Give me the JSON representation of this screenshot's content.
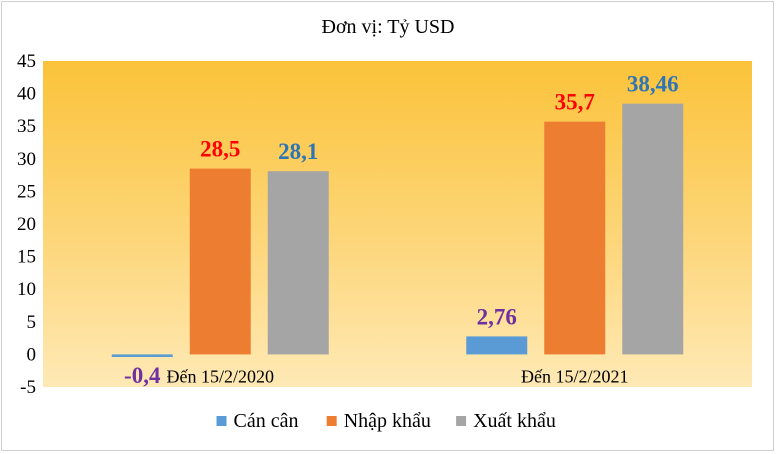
{
  "chart_data": {
    "type": "bar",
    "title": "Đơn vị: Tỷ USD",
    "categories": [
      "Đến 15/2/2020",
      "Đến 15/2/2021"
    ],
    "series": [
      {
        "name": "Cán cân",
        "values": [
          -0.4,
          2.76
        ],
        "labels": [
          "-0,4",
          "2,76"
        ],
        "color": "#5b9bd5",
        "label_color": "#7030a0"
      },
      {
        "name": "Nhập khẩu",
        "values": [
          28.5,
          35.7
        ],
        "labels": [
          "28,5",
          "35,7"
        ],
        "color": "#ed7d31",
        "label_color": "#ff0000"
      },
      {
        "name": "Xuất khẩu",
        "values": [
          28.1,
          38.46
        ],
        "labels": [
          "28,1",
          "38,46"
        ],
        "color": "#a5a5a5",
        "label_color": "#2e75b6"
      }
    ],
    "ylim": [
      -5,
      45
    ],
    "yticks": [
      -5,
      0,
      5,
      10,
      15,
      20,
      25,
      30,
      35,
      40,
      45
    ],
    "grid": false,
    "legend": "bottom",
    "plot_background": "#ffc000"
  }
}
